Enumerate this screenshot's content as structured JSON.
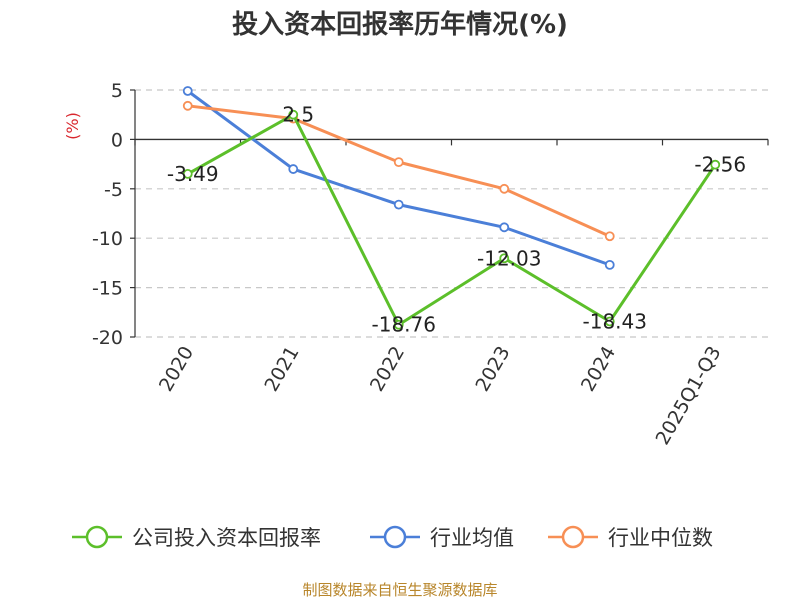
{
  "chart_data": {
    "type": "line",
    "title": "投入资本回报率历年情况(%)",
    "ylabel": "(%)",
    "categories": [
      "2020",
      "2021",
      "2022",
      "2023",
      "2024",
      "2025Q1-Q3"
    ],
    "ylim": [
      -20,
      5
    ],
    "yticks": [
      5,
      0,
      -5,
      -10,
      -15,
      -20
    ],
    "grid": true,
    "legend_position": "bottom",
    "series": [
      {
        "name": "公司投入资本回报率",
        "color": "#5cbf2a",
        "values": [
          -3.49,
          2.5,
          -18.76,
          -12.03,
          -18.43,
          -2.56
        ],
        "labels": [
          "-3.49",
          "2.5",
          "-18.76",
          "-12.03",
          "-18.43",
          "-2.56"
        ]
      },
      {
        "name": "行业均值",
        "color": "#4b7fd8",
        "values": [
          4.9,
          -3.0,
          -6.6,
          -8.9,
          -12.7,
          null
        ]
      },
      {
        "name": "行业中位数",
        "color": "#f78f55",
        "values": [
          3.4,
          2.1,
          -2.3,
          -5.0,
          -9.8,
          null
        ]
      }
    ]
  },
  "source_note": "制图数据来自恒生聚源数据库"
}
